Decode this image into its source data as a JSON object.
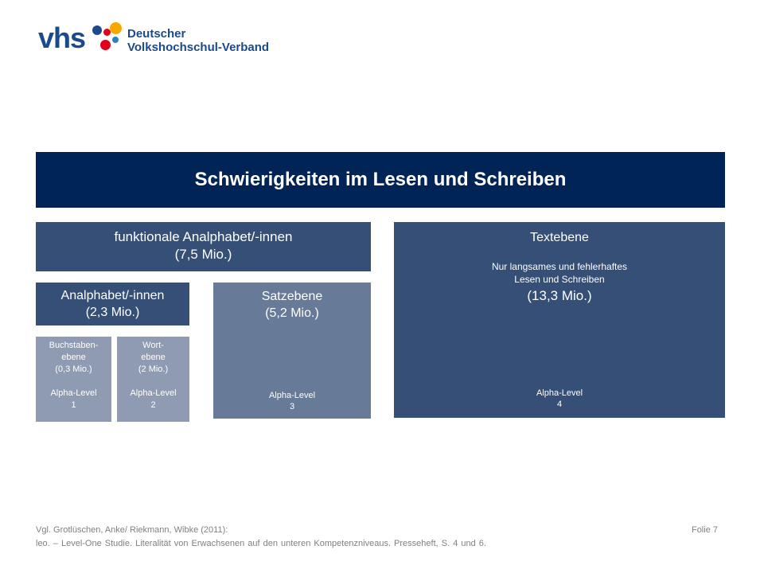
{
  "logo": {
    "word": "vhs",
    "org_line1": "Deutscher",
    "org_line2": "Volkshochschul-Verband",
    "dot_colors": [
      "#1a4a8c",
      "#e2001a",
      "#f7a800",
      "#e2001a",
      "#2a7fc6"
    ]
  },
  "header": {
    "title": "Schwierigkeiten im Lesen und Schreiben"
  },
  "funktionale": {
    "label": "funktionale Analphabet/-innen",
    "amount": "(7,5 Mio.)"
  },
  "textebene": {
    "label": "Textebene",
    "desc_line1": "Nur langsames und fehlerhaftes",
    "desc_line2": "Lesen und Schreiben",
    "amount": "(13,3 Mio.)",
    "level_label": "Alpha-Level",
    "level_num": "4"
  },
  "analphabet": {
    "label": "Analphabet/-innen",
    "amount": "(2,3 Mio.)"
  },
  "satzebene": {
    "label": "Satzebene",
    "amount": "(5,2 Mio.)",
    "level_label": "Alpha-Level",
    "level_num": "3"
  },
  "buchstaben": {
    "line1": "Buchstaben-",
    "line2": "ebene",
    "amount": "(0,3 Mio.)",
    "level_label": "Alpha-Level",
    "level_num": "1"
  },
  "wort": {
    "line1": "Wort-",
    "line2": "ebene",
    "amount": "(2 Mio.)",
    "level_label": "Alpha-Level",
    "level_num": "2"
  },
  "footer": {
    "source_line1": "Vgl. Grotlüschen, Anke/ Riekmann,  Wibke (2011):",
    "source_line2": "leo. – Level-One Studie. Literalität von Erwachsenen auf den unteren Kompetenzniveaus. Presseheft, S. 4 und 6.",
    "slide": "Folie 7"
  },
  "colors": {
    "header": "#002455",
    "dark_box": "#354f76",
    "mid_box": "#677a98",
    "light_box": "#8e9bb2"
  }
}
